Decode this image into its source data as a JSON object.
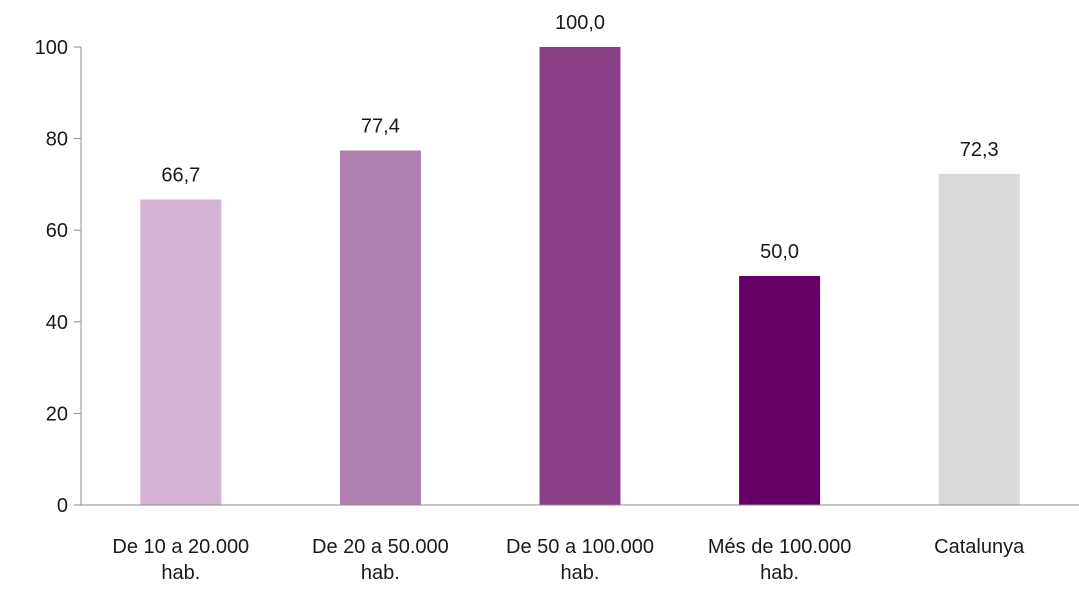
{
  "chart_data": {
    "type": "bar",
    "title": "",
    "xlabel": "",
    "ylabel": "",
    "ylim": [
      0,
      100
    ],
    "yticks": [
      0,
      20,
      40,
      60,
      80,
      100
    ],
    "grid": false,
    "legend": "none",
    "categories": [
      [
        "De 10 a 20.000",
        "hab."
      ],
      [
        "De 20 a 50.000",
        "hab."
      ],
      [
        "De 50 a 100.000",
        "hab."
      ],
      [
        "Més de 100.000",
        "hab."
      ],
      [
        "Catalunya"
      ]
    ],
    "values": [
      66.7,
      77.4,
      100.0,
      50.0,
      72.3
    ],
    "value_labels": [
      "66,7",
      "77,4",
      "100,0",
      "50,0",
      "72,3"
    ],
    "colors": [
      "#d4b3d2",
      "#b07fb1",
      "#8a4088",
      "#660066",
      "#d9d9d9"
    ],
    "axis_color": "#8c8c8c"
  }
}
